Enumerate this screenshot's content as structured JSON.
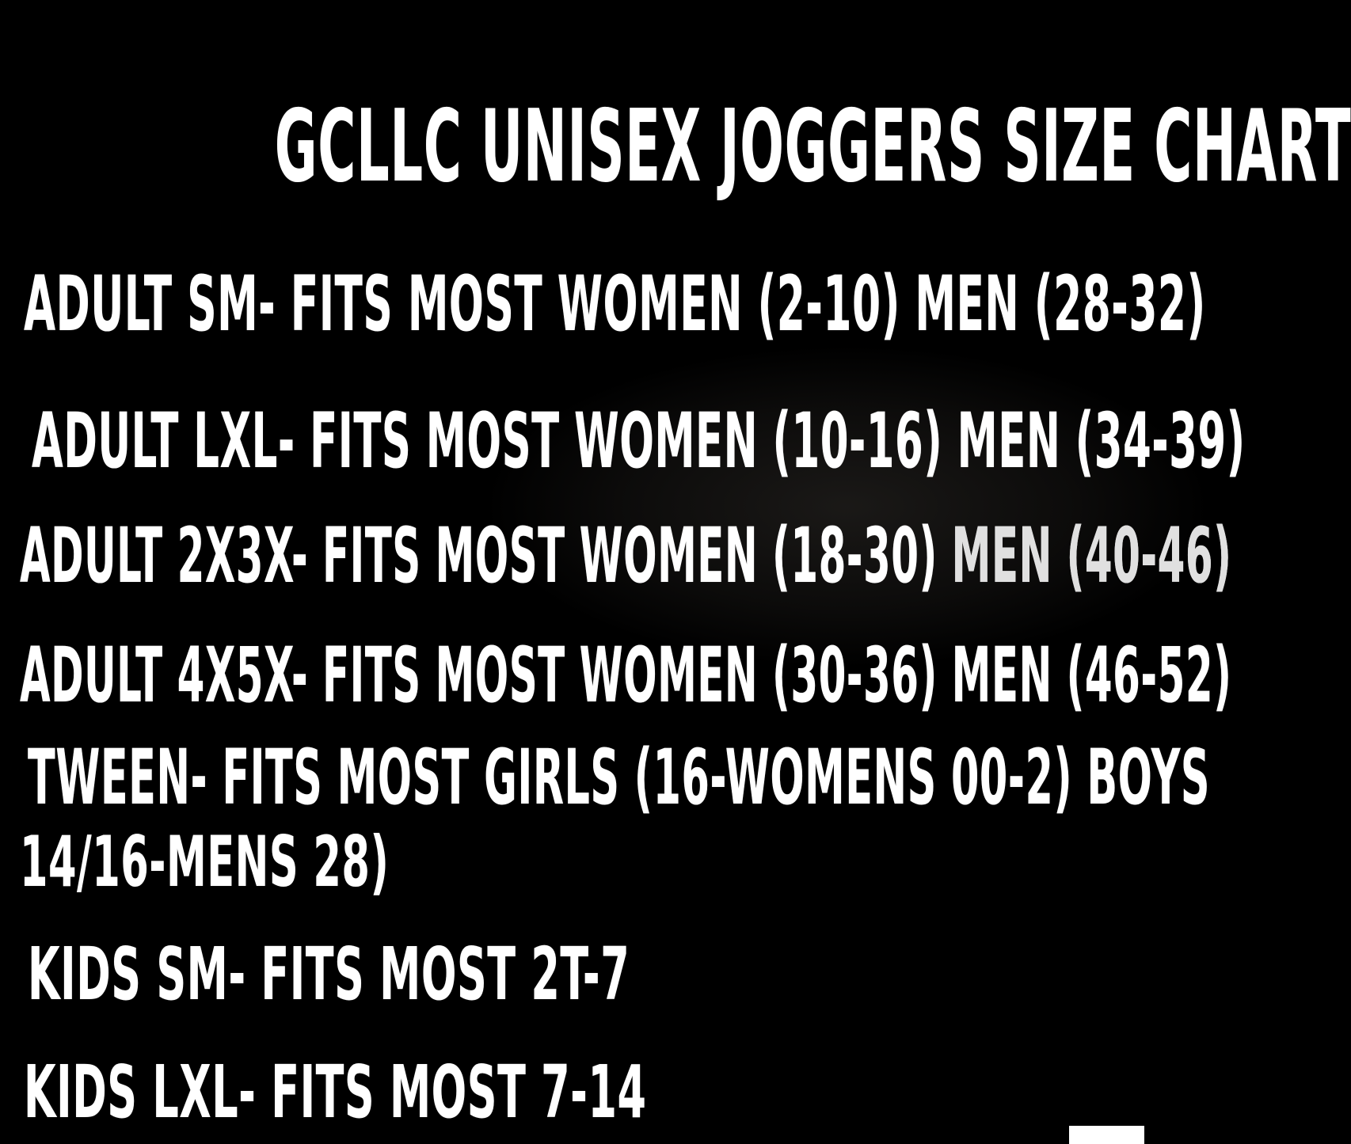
{
  "title": "GCLLC UNISEX JOGGERS SIZE CHART",
  "rows": [
    "ADULT SM- FITS MOST WOMEN (2-10) MEN (28-32)",
    "ADULT LXL- FITS MOST WOMEN (10-16) MEN (34-39)",
    {
      "main": "ADULT 2X3X- FITS MOST WOMEN (18-30) ",
      "dim": "MEN (40-46)"
    },
    "ADULT 4X5X- FITS MOST WOMEN (30-36) MEN (46-52)",
    "TWEEN- FITS MOST GIRLS (16-WOMENS 00-2) BOYS",
    "14/16-MENS 28)",
    "KIDS SM- FITS MOST 2T-7",
    "KIDS LXL- FITS MOST 7-14"
  ],
  "sizes": [
    {
      "size": "ADULT SM",
      "fits_women": "2-10",
      "fits_men": "28-32"
    },
    {
      "size": "ADULT LXL",
      "fits_women": "10-16",
      "fits_men": "34-39"
    },
    {
      "size": "ADULT 2X3X",
      "fits_women": "18-30",
      "fits_men": "40-46"
    },
    {
      "size": "ADULT 4X5X",
      "fits_women": "30-36",
      "fits_men": "46-52"
    },
    {
      "size": "TWEEN",
      "fits_girls": "16-WOMENS 00-2",
      "fits_boys": "14/16-MENS 28"
    },
    {
      "size": "KIDS SM",
      "fits": "2T-7"
    },
    {
      "size": "KIDS LXL",
      "fits": "7-14"
    }
  ],
  "colors": {
    "background": "#000000",
    "text": "#ffffff",
    "dim_text": "#e0e0e0",
    "corner": "#ffffff"
  }
}
